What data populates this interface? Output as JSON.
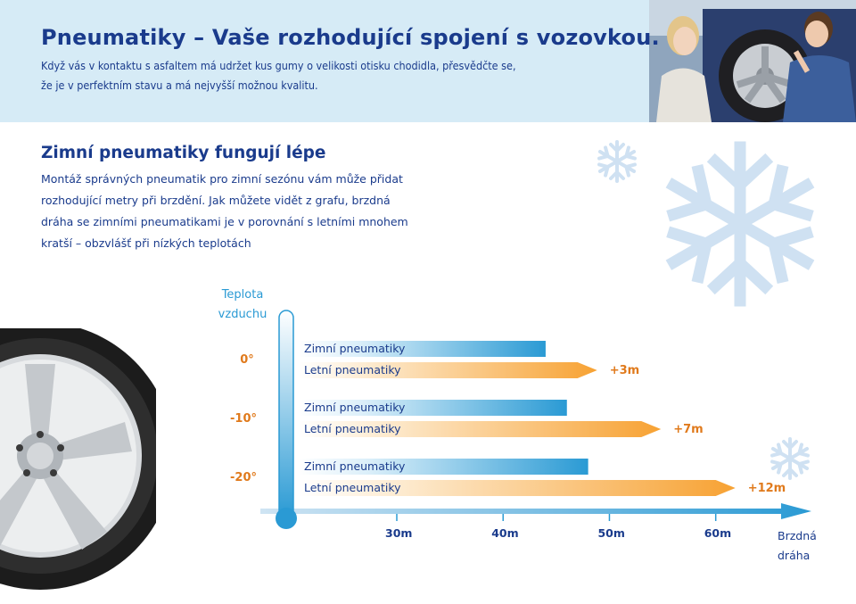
{
  "header": {
    "title": "Pneumatiky – Vaše rozhodující spojení s vozovkou.",
    "intro_line1": "Když vás v kontaktu s asfaltem má udržet kus gumy o velikosti otisku chodidla, přesvědčte se,",
    "intro_line2": "že je v perfektním stavu a má nejvyšší možnou kvalitu."
  },
  "section": {
    "title": "Zimní pneumatiky fungují lépe",
    "lines": [
      "Montáž správných pneumatik pro zimní sezónu vám může přidat",
      "rozhodující metry při brzdění. Jak můžete vidět z grafu, brzdná",
      "dráha se zimními pneumatikami je v porovnání s letními mnohem",
      "kratší – obzvlášť při nízkých teplotách"
    ]
  },
  "colors": {
    "title_blue": "#1a3b8c",
    "header_bg": "#d6ebf6",
    "winter_bar": "#2a9ad4",
    "summer_bar": "#f7a233",
    "delta_orange": "#e07a1c",
    "snowflake": "#cfe1f2"
  },
  "icons": [
    "snowflake-icon",
    "thermometer-icon",
    "wheel-image",
    "photo-mechanic"
  ],
  "chart_data": {
    "type": "bar",
    "orientation": "horizontal",
    "y_axis_label_line1": "Teplota",
    "y_axis_label_line2": "vzduchu",
    "x_axis_label_line1": "Brzdná",
    "x_axis_label_line2": "dráha",
    "x_ticks": [
      "30m",
      "40m",
      "50m",
      "60m"
    ],
    "x_tick_values": [
      30,
      40,
      50,
      60
    ],
    "xlim": [
      17,
      69
    ],
    "groups": [
      {
        "temperature": "0°",
        "winter_label": "Zimní pneumatiky",
        "summer_label": "Letní pneumatiky",
        "winter": 44,
        "summer": 47,
        "delta": "+3m"
      },
      {
        "temperature": "-10°",
        "winter_label": "Zimní pneumatiky",
        "summer_label": "Letní pneumatiky",
        "winter": 46,
        "summer": 53,
        "delta": "+7m"
      },
      {
        "temperature": "-20°",
        "winter_label": "Zimní pneumatiky",
        "summer_label": "Letní pneumatiky",
        "winter": 48,
        "summer": 60,
        "delta": "+12m"
      }
    ],
    "series": [
      {
        "name": "Zimní pneumatiky",
        "values": [
          44,
          46,
          48
        ]
      },
      {
        "name": "Letní pneumatiky",
        "values": [
          47,
          53,
          60
        ]
      }
    ]
  }
}
